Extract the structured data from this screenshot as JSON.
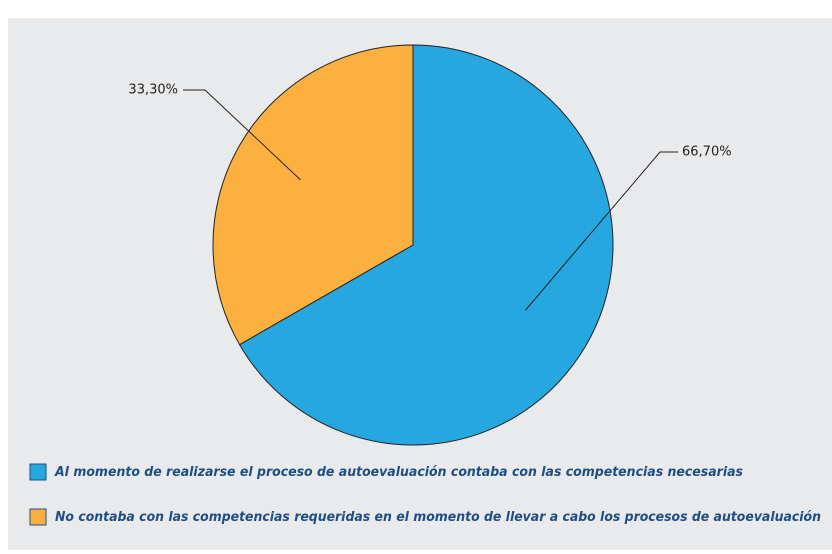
{
  "chart_data": {
    "type": "pie",
    "categories": [
      "Al momento de realizarse el proceso de autoevaluación contaba con las competencias necesarias",
      "No contaba con las competencias requeridas en el momento de llevar a cabo los procesos de autoevaluación"
    ],
    "values": [
      66.7,
      33.3
    ],
    "value_labels": [
      "66,70%",
      "33,30%"
    ],
    "colors": [
      "#27a7df",
      "#fbb040"
    ],
    "legend": "bottom-left"
  }
}
